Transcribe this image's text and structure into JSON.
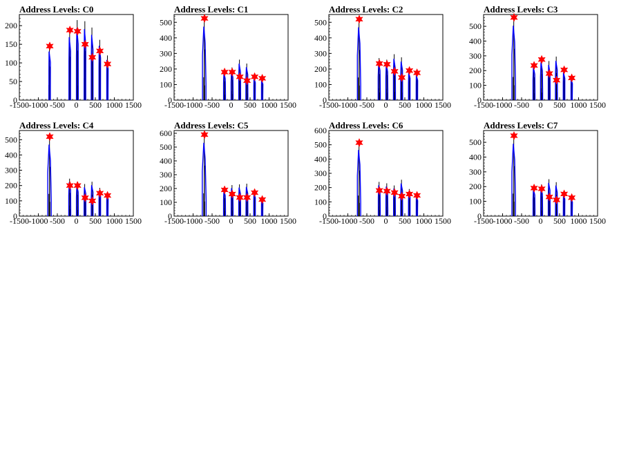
{
  "chart_data": [
    {
      "type": "histogram",
      "title": "Address Levels: C0",
      "xlim": [
        -1500,
        1500
      ],
      "ylim": [
        0,
        230
      ],
      "xticks": [
        -1500,
        -1000,
        -500,
        0,
        500,
        1000,
        1500
      ],
      "yticks": [
        0,
        50,
        100,
        150,
        200
      ],
      "peaks": [
        {
          "x": -700,
          "value": 145,
          "marked": 145,
          "spread": [
            22,
            16
          ],
          "offsets": [
            -26,
            -8,
            6
          ]
        },
        {
          "x": -170,
          "value": 188,
          "marked": 188,
          "spread": [
            25,
            18
          ],
          "offsets": [
            -24,
            -6,
            8
          ]
        },
        {
          "x": 30,
          "value": 215,
          "marked": 185,
          "spread": [
            28,
            20
          ],
          "offsets": [
            -28,
            -8,
            10
          ]
        },
        {
          "x": 230,
          "value": 212,
          "marked": 150,
          "spread": [
            25,
            18
          ],
          "offsets": [
            -26,
            -6,
            8
          ]
        },
        {
          "x": 420,
          "value": 195,
          "marked": 115,
          "spread": [
            27,
            20
          ],
          "offsets": [
            -30,
            -10,
            6
          ]
        },
        {
          "x": 620,
          "value": 162,
          "marked": 132,
          "spread": [
            23,
            17
          ],
          "offsets": [
            -22,
            -4,
            10
          ]
        },
        {
          "x": 820,
          "value": 120,
          "marked": 97,
          "spread": [
            20,
            15
          ],
          "offsets": [
            -18,
            -2,
            10
          ]
        }
      ]
    },
    {
      "type": "histogram",
      "title": "Address Levels: C1",
      "xlim": [
        -1500,
        1500
      ],
      "ylim": [
        0,
        550
      ],
      "xticks": [
        -1500,
        -1000,
        -500,
        0,
        500,
        1000,
        1500
      ],
      "yticks": [
        0,
        100,
        200,
        300,
        400,
        500
      ],
      "peaks": [
        {
          "x": -700,
          "value": 525,
          "marked": 525,
          "spread": [
            52,
            40
          ],
          "offsets": [
            -20,
            -6,
            6
          ]
        },
        {
          "x": -170,
          "value": 195,
          "marked": 180,
          "spread": [
            28,
            22
          ],
          "offsets": [
            -24,
            -8,
            8
          ]
        },
        {
          "x": 30,
          "value": 210,
          "marked": 180,
          "spread": [
            30,
            22
          ],
          "offsets": [
            -26,
            -6,
            10
          ]
        },
        {
          "x": 230,
          "value": 260,
          "marked": 150,
          "spread": [
            28,
            20
          ],
          "offsets": [
            -28,
            -10,
            6
          ]
        },
        {
          "x": 420,
          "value": 235,
          "marked": 125,
          "spread": [
            30,
            22
          ],
          "offsets": [
            -30,
            -8,
            8
          ]
        },
        {
          "x": 620,
          "value": 160,
          "marked": 150,
          "spread": [
            22,
            16
          ],
          "offsets": [
            -20,
            -4,
            10
          ]
        },
        {
          "x": 820,
          "value": 145,
          "marked": 140,
          "spread": [
            20,
            15
          ],
          "offsets": [
            -18,
            -2,
            8
          ]
        }
      ]
    },
    {
      "type": "histogram",
      "title": "Address Levels: C2",
      "xlim": [
        -1500,
        1500
      ],
      "ylim": [
        0,
        550
      ],
      "xticks": [
        -1500,
        -1000,
        -500,
        0,
        500,
        1000,
        1500
      ],
      "yticks": [
        0,
        100,
        200,
        300,
        400,
        500
      ],
      "peaks": [
        {
          "x": -700,
          "value": 520,
          "marked": 520,
          "spread": [
            50,
            38
          ],
          "offsets": [
            -22,
            -6,
            6
          ]
        },
        {
          "x": -170,
          "value": 270,
          "marked": 235,
          "spread": [
            32,
            24
          ],
          "offsets": [
            -24,
            -8,
            8
          ]
        },
        {
          "x": 30,
          "value": 260,
          "marked": 230,
          "spread": [
            30,
            22
          ],
          "offsets": [
            -26,
            -6,
            10
          ]
        },
        {
          "x": 230,
          "value": 295,
          "marked": 185,
          "spread": [
            30,
            22
          ],
          "offsets": [
            -28,
            -10,
            6
          ]
        },
        {
          "x": 420,
          "value": 275,
          "marked": 145,
          "spread": [
            30,
            22
          ],
          "offsets": [
            -30,
            -8,
            8
          ]
        },
        {
          "x": 620,
          "value": 200,
          "marked": 190,
          "spread": [
            24,
            18
          ],
          "offsets": [
            -20,
            -4,
            10
          ]
        },
        {
          "x": 820,
          "value": 180,
          "marked": 175,
          "spread": [
            22,
            16
          ],
          "offsets": [
            -18,
            -2,
            8
          ]
        }
      ]
    },
    {
      "type": "histogram",
      "title": "Address Levels: C3",
      "xlim": [
        -1500,
        1500
      ],
      "ylim": [
        0,
        580
      ],
      "xticks": [
        -1500,
        -1000,
        -500,
        0,
        500,
        1000,
        1500
      ],
      "yticks": [
        0,
        100,
        200,
        300,
        400,
        500
      ],
      "peaks": [
        {
          "x": -700,
          "value": 560,
          "marked": 560,
          "spread": [
            55,
            40
          ],
          "offsets": [
            -22,
            -6,
            6
          ]
        },
        {
          "x": -170,
          "value": 250,
          "marked": 235,
          "spread": [
            30,
            22
          ],
          "offsets": [
            -24,
            -8,
            8
          ]
        },
        {
          "x": 30,
          "value": 285,
          "marked": 275,
          "spread": [
            32,
            24
          ],
          "offsets": [
            -26,
            -6,
            10
          ]
        },
        {
          "x": 230,
          "value": 265,
          "marked": 180,
          "spread": [
            28,
            20
          ],
          "offsets": [
            -28,
            -10,
            6
          ]
        },
        {
          "x": 420,
          "value": 295,
          "marked": 135,
          "spread": [
            30,
            22
          ],
          "offsets": [
            -30,
            -8,
            8
          ]
        },
        {
          "x": 620,
          "value": 210,
          "marked": 205,
          "spread": [
            24,
            18
          ],
          "offsets": [
            -20,
            -4,
            10
          ]
        },
        {
          "x": 820,
          "value": 160,
          "marked": 150,
          "spread": [
            20,
            15
          ],
          "offsets": [
            -18,
            -2,
            8
          ]
        }
      ]
    },
    {
      "type": "histogram",
      "title": "Address Levels: C4",
      "xlim": [
        -1500,
        1500
      ],
      "ylim": [
        0,
        560
      ],
      "xticks": [
        -1500,
        -1000,
        -500,
        0,
        500,
        1000,
        1500
      ],
      "yticks": [
        0,
        100,
        200,
        300,
        400,
        500
      ],
      "peaks": [
        {
          "x": -700,
          "value": 520,
          "marked": 520,
          "spread": [
            52,
            40
          ],
          "offsets": [
            -22,
            -6,
            6
          ]
        },
        {
          "x": -170,
          "value": 245,
          "marked": 200,
          "spread": [
            30,
            22
          ],
          "offsets": [
            -24,
            -8,
            8
          ]
        },
        {
          "x": 30,
          "value": 225,
          "marked": 200,
          "spread": [
            28,
            22
          ],
          "offsets": [
            -26,
            -6,
            10
          ]
        },
        {
          "x": 230,
          "value": 210,
          "marked": 120,
          "spread": [
            26,
            20
          ],
          "offsets": [
            -28,
            -10,
            6
          ]
        },
        {
          "x": 420,
          "value": 225,
          "marked": 100,
          "spread": [
            28,
            20
          ],
          "offsets": [
            -30,
            -8,
            8
          ]
        },
        {
          "x": 620,
          "value": 185,
          "marked": 150,
          "spread": [
            24,
            18
          ],
          "offsets": [
            -20,
            -4,
            10
          ]
        },
        {
          "x": 820,
          "value": 160,
          "marked": 135,
          "spread": [
            20,
            15
          ],
          "offsets": [
            -18,
            -2,
            8
          ]
        }
      ]
    },
    {
      "type": "histogram",
      "title": "Address Levels: C5",
      "xlim": [
        -1500,
        1500
      ],
      "ylim": [
        0,
        620
      ],
      "xticks": [
        -1500,
        -1000,
        -500,
        0,
        500,
        1000,
        1500
      ],
      "yticks": [
        0,
        100,
        200,
        300,
        400,
        500,
        600
      ],
      "peaks": [
        {
          "x": -700,
          "value": 590,
          "marked": 590,
          "spread": [
            58,
            44
          ],
          "offsets": [
            -22,
            -6,
            6
          ]
        },
        {
          "x": -170,
          "value": 210,
          "marked": 190,
          "spread": [
            28,
            22
          ],
          "offsets": [
            -24,
            -8,
            8
          ]
        },
        {
          "x": 30,
          "value": 225,
          "marked": 160,
          "spread": [
            28,
            22
          ],
          "offsets": [
            -26,
            -6,
            10
          ]
        },
        {
          "x": 230,
          "value": 230,
          "marked": 135,
          "spread": [
            28,
            20
          ],
          "offsets": [
            -28,
            -10,
            6
          ]
        },
        {
          "x": 420,
          "value": 235,
          "marked": 135,
          "spread": [
            28,
            22
          ],
          "offsets": [
            -30,
            -8,
            8
          ]
        },
        {
          "x": 620,
          "value": 190,
          "marked": 170,
          "spread": [
            24,
            18
          ],
          "offsets": [
            -20,
            -4,
            10
          ]
        },
        {
          "x": 820,
          "value": 135,
          "marked": 120,
          "spread": [
            20,
            15
          ],
          "offsets": [
            -18,
            -2,
            8
          ]
        }
      ]
    },
    {
      "type": "histogram",
      "title": "Address Levels: C6",
      "xlim": [
        -1500,
        1500
      ],
      "ylim": [
        0,
        600
      ],
      "xticks": [
        -1500,
        -1000,
        -500,
        0,
        500,
        1000,
        1500
      ],
      "yticks": [
        0,
        100,
        200,
        300,
        400,
        500,
        600
      ],
      "peaks": [
        {
          "x": -700,
          "value": 515,
          "marked": 515,
          "spread": [
            50,
            38
          ],
          "offsets": [
            -22,
            -6,
            6
          ]
        },
        {
          "x": -170,
          "value": 240,
          "marked": 180,
          "spread": [
            28,
            22
          ],
          "offsets": [
            -24,
            -8,
            8
          ]
        },
        {
          "x": 30,
          "value": 230,
          "marked": 175,
          "spread": [
            28,
            22
          ],
          "offsets": [
            -26,
            -6,
            10
          ]
        },
        {
          "x": 230,
          "value": 215,
          "marked": 165,
          "spread": [
            26,
            20
          ],
          "offsets": [
            -28,
            -10,
            6
          ]
        },
        {
          "x": 420,
          "value": 255,
          "marked": 140,
          "spread": [
            30,
            22
          ],
          "offsets": [
            -30,
            -8,
            8
          ]
        },
        {
          "x": 620,
          "value": 190,
          "marked": 155,
          "spread": [
            24,
            18
          ],
          "offsets": [
            -20,
            -4,
            10
          ]
        },
        {
          "x": 820,
          "value": 155,
          "marked": 145,
          "spread": [
            20,
            15
          ],
          "offsets": [
            -18,
            -2,
            8
          ]
        }
      ]
    },
    {
      "type": "histogram",
      "title": "Address Levels: C7",
      "xlim": [
        -1500,
        1500
      ],
      "ylim": [
        0,
        580
      ],
      "xticks": [
        -1500,
        -1000,
        -500,
        0,
        500,
        1000,
        1500
      ],
      "yticks": [
        0,
        100,
        200,
        300,
        400,
        500
      ],
      "peaks": [
        {
          "x": -700,
          "value": 545,
          "marked": 545,
          "spread": [
            54,
            40
          ],
          "offsets": [
            -22,
            -6,
            6
          ]
        },
        {
          "x": -170,
          "value": 205,
          "marked": 190,
          "spread": [
            28,
            22
          ],
          "offsets": [
            -24,
            -8,
            8
          ]
        },
        {
          "x": 30,
          "value": 215,
          "marked": 185,
          "spread": [
            28,
            22
          ],
          "offsets": [
            -26,
            -6,
            10
          ]
        },
        {
          "x": 230,
          "value": 250,
          "marked": 130,
          "spread": [
            28,
            20
          ],
          "offsets": [
            -28,
            -10,
            6
          ]
        },
        {
          "x": 420,
          "value": 230,
          "marked": 110,
          "spread": [
            28,
            22
          ],
          "offsets": [
            -30,
            -8,
            8
          ]
        },
        {
          "x": 620,
          "value": 165,
          "marked": 150,
          "spread": [
            22,
            16
          ],
          "offsets": [
            -20,
            -4,
            10
          ]
        },
        {
          "x": 820,
          "value": 135,
          "marked": 125,
          "spread": [
            20,
            15
          ],
          "offsets": [
            -18,
            -2,
            8
          ]
        }
      ]
    }
  ],
  "style": {
    "series_color": "#0000ff",
    "bin_color": "#000000",
    "marker_color": "#ff0000",
    "axis_color": "#000000"
  }
}
